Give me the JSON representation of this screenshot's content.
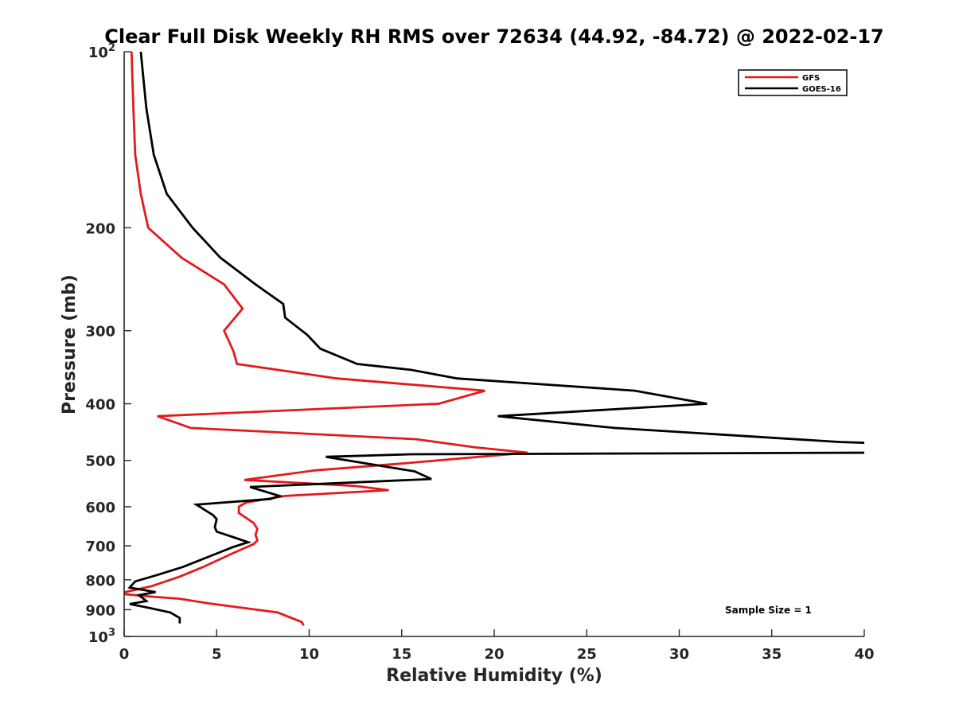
{
  "chart_data": {
    "type": "line",
    "title": "Clear Full Disk Weekly RH RMS over 72634 (44.92, -84.72) @ 2022-02-17",
    "xlabel": "Relative Humidity (%)",
    "ylabel": "Pressure (mb)",
    "xlim": [
      0,
      40
    ],
    "ylim": [
      100,
      1000
    ],
    "yscale": "log",
    "y_reversed": true,
    "grid": false,
    "legend_position": "top-right",
    "x_ticks": [
      0,
      5,
      10,
      15,
      20,
      25,
      30,
      35,
      40
    ],
    "x_tick_labels": [
      "0",
      "5",
      "10",
      "15",
      "20",
      "25",
      "30",
      "35",
      "40"
    ],
    "y_ticks": [
      100,
      200,
      300,
      400,
      500,
      600,
      700,
      800,
      900,
      1000
    ],
    "y_tick_labels": [
      {
        "base": "10",
        "exp": "2"
      },
      {
        "base": "200",
        "exp": ""
      },
      {
        "base": "300",
        "exp": ""
      },
      {
        "base": "400",
        "exp": ""
      },
      {
        "base": "500",
        "exp": ""
      },
      {
        "base": "600",
        "exp": ""
      },
      {
        "base": "700",
        "exp": ""
      },
      {
        "base": "800",
        "exp": ""
      },
      {
        "base": "900",
        "exp": ""
      },
      {
        "base": "10",
        "exp": "3"
      }
    ],
    "annotation": "Sample Size = 1",
    "series": [
      {
        "name": "GFS",
        "color": "#e31a1c",
        "points": [
          [
            0.4,
            100
          ],
          [
            0.5,
            125
          ],
          [
            0.6,
            150
          ],
          [
            0.9,
            175
          ],
          [
            1.3,
            200
          ],
          [
            3.1,
            225
          ],
          [
            5.4,
            250
          ],
          [
            6.4,
            275
          ],
          [
            5.4,
            300
          ],
          [
            5.9,
            325
          ],
          [
            6.1,
            342
          ],
          [
            11.5,
            362
          ],
          [
            19.5,
            380
          ],
          [
            17.0,
            400
          ],
          [
            1.8,
            420
          ],
          [
            3.6,
            440
          ],
          [
            15.8,
            460
          ],
          [
            19.0,
            475
          ],
          [
            21.8,
            485
          ],
          [
            15.4,
            505
          ],
          [
            10.3,
            520
          ],
          [
            6.5,
            540
          ],
          [
            12.5,
            553
          ],
          [
            14.3,
            562
          ],
          [
            8.7,
            575
          ],
          [
            6.6,
            590
          ],
          [
            6.2,
            600
          ],
          [
            6.2,
            615
          ],
          [
            7.0,
            640
          ],
          [
            7.2,
            655
          ],
          [
            7.1,
            670
          ],
          [
            7.2,
            685
          ],
          [
            7.0,
            695
          ],
          [
            5.9,
            720
          ],
          [
            4.3,
            760
          ],
          [
            3.0,
            790
          ],
          [
            1.5,
            820
          ],
          [
            -0.3,
            845
          ],
          [
            1.5,
            855
          ],
          [
            3.0,
            862
          ],
          [
            4.6,
            878
          ],
          [
            8.3,
            910
          ],
          [
            9.6,
            945
          ],
          [
            9.7,
            958
          ]
        ]
      },
      {
        "name": "GOES-16",
        "color": "#000000",
        "points": [
          [
            0.9,
            100
          ],
          [
            1.2,
            125
          ],
          [
            1.6,
            150
          ],
          [
            2.3,
            175
          ],
          [
            3.7,
            200
          ],
          [
            5.2,
            225
          ],
          [
            7.1,
            250
          ],
          [
            8.6,
            270
          ],
          [
            8.7,
            285
          ],
          [
            9.9,
            305
          ],
          [
            10.6,
            322
          ],
          [
            12.6,
            342
          ],
          [
            15.5,
            350
          ],
          [
            18.0,
            362
          ],
          [
            27.6,
            380
          ],
          [
            31.5,
            400
          ],
          [
            20.2,
            420
          ],
          [
            26.5,
            440
          ],
          [
            38.7,
            465
          ],
          [
            40.5,
            467
          ],
          [
            40.5,
            485
          ],
          [
            15.5,
            488
          ],
          [
            10.9,
            493
          ],
          [
            15.7,
            522
          ],
          [
            16.6,
            538
          ],
          [
            6.8,
            555
          ],
          [
            8.4,
            575
          ],
          [
            7.9,
            582
          ],
          [
            3.9,
            595
          ],
          [
            4.8,
            620
          ],
          [
            5.0,
            630
          ],
          [
            4.9,
            650
          ],
          [
            5.0,
            662
          ],
          [
            6.0,
            678
          ],
          [
            6.7,
            690
          ],
          [
            5.9,
            703
          ],
          [
            4.6,
            730
          ],
          [
            3.2,
            760
          ],
          [
            1.8,
            785
          ],
          [
            0.6,
            805
          ],
          [
            0.3,
            825
          ],
          [
            1.7,
            840
          ],
          [
            0.8,
            850
          ],
          [
            1.2,
            870
          ],
          [
            0.3,
            880
          ],
          [
            1.3,
            893
          ],
          [
            2.5,
            910
          ],
          [
            3.0,
            930
          ],
          [
            3.0,
            950
          ]
        ]
      }
    ]
  }
}
